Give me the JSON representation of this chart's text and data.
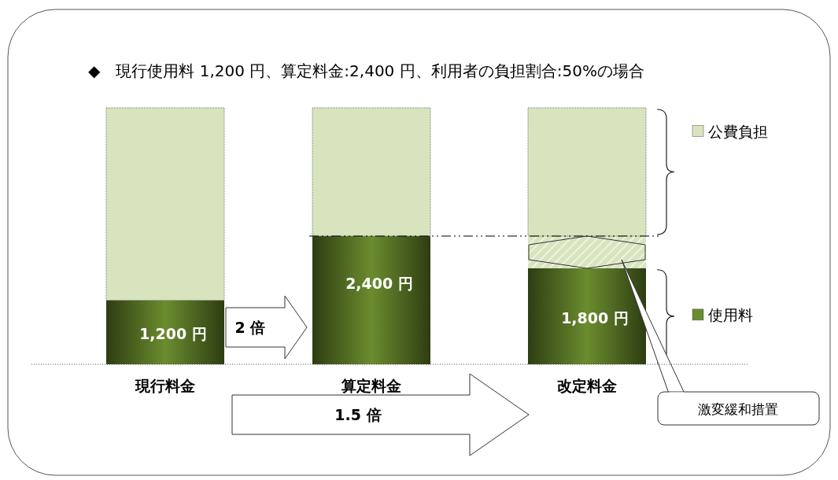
{
  "chart_data": {
    "type": "bar",
    "title": "◆　現行使用料 1,200 円、算定料金:2,400 円、利用者の負担割合:50%の場合",
    "categories": [
      "現行料金",
      "算定料金",
      "改定料金"
    ],
    "stacked": true,
    "legend": "right",
    "series": [
      {
        "name": "使用料",
        "color": "#6b8c2e",
        "values": [
          1200,
          2400,
          1800
        ],
        "value_labels": [
          "1,200 円",
          "2,400 円",
          "1,800 円"
        ]
      },
      {
        "name": "激変緩和措置",
        "color": "#d7e4bd",
        "values": [
          0,
          0,
          600
        ]
      },
      {
        "name": "公費負担",
        "color": "#d7e4bd",
        "values": [
          3600,
          2400,
          2400
        ]
      }
    ],
    "ref_lines": [
      {
        "axis": "y",
        "value": 2400,
        "line_style": "dashed",
        "color": "#000000"
      }
    ],
    "annotations": [
      "2 倍",
      "1.5 倍"
    ]
  }
}
